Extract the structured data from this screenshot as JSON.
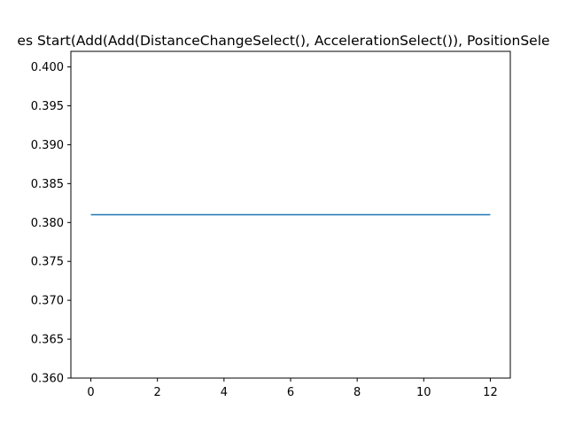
{
  "chart_data": {
    "type": "line",
    "title": "es Start(Add(Add(DistanceChangeSelect(), AccelerationSelect()), PositionSele",
    "xlabel": "",
    "ylabel": "",
    "xlim": [
      -0.6,
      12.6
    ],
    "ylim": [
      0.36,
      0.402
    ],
    "x_ticks": [
      0,
      2,
      4,
      6,
      8,
      10,
      12
    ],
    "x_tick_labels": [
      "0",
      "2",
      "4",
      "6",
      "8",
      "10",
      "12"
    ],
    "y_ticks": [
      0.36,
      0.365,
      0.37,
      0.375,
      0.38,
      0.385,
      0.39,
      0.395,
      0.4
    ],
    "y_tick_labels": [
      "0.360",
      "0.365",
      "0.370",
      "0.375",
      "0.380",
      "0.385",
      "0.390",
      "0.395",
      "0.400"
    ],
    "grid": false,
    "series": [
      {
        "color": "#1f77b4",
        "x": [
          0,
          1,
          2,
          3,
          4,
          5,
          6,
          7,
          8,
          9,
          10,
          11,
          12
        ],
        "y": [
          0.381,
          0.381,
          0.381,
          0.381,
          0.381,
          0.381,
          0.381,
          0.381,
          0.381,
          0.381,
          0.381,
          0.381,
          0.381
        ]
      }
    ]
  }
}
